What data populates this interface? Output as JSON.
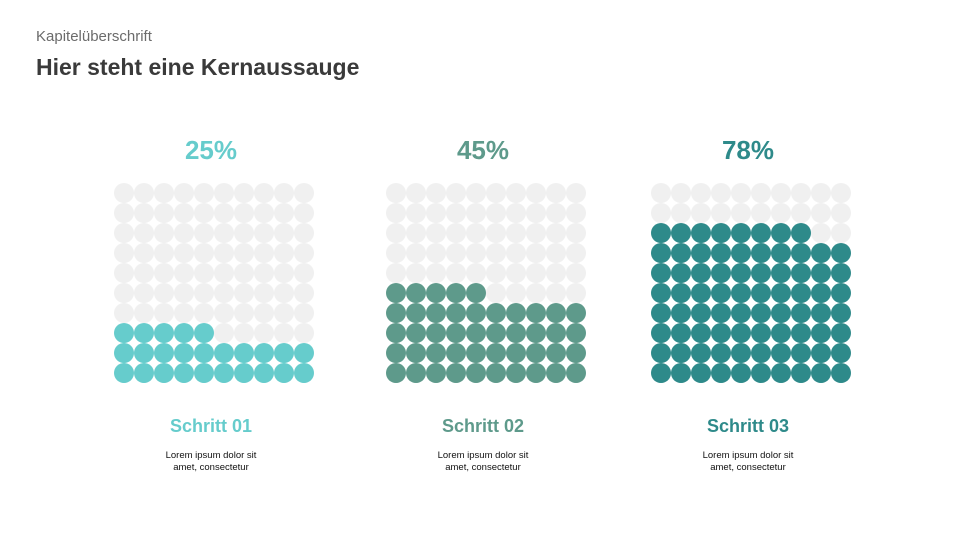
{
  "header": {
    "kapitel": "Kapitelüberschrift",
    "headline": "Hier steht eine Kernaussauge"
  },
  "chart_data": [
    {
      "type": "waffle",
      "value": 25,
      "label": "25%",
      "grid": [
        10,
        10
      ],
      "fill_color": "#66cccc",
      "empty_color": "#f0f0f0",
      "step": "Schritt 01",
      "text": "Lorem ipsum dolor sit\namet, consectetur"
    },
    {
      "type": "waffle",
      "value": 45,
      "label": "45%",
      "grid": [
        10,
        10
      ],
      "fill_color": "#5e9a8b",
      "empty_color": "#f0f0f0",
      "step": "Schritt 02",
      "text": "Lorem ipsum dolor sit\namet, consectetur"
    },
    {
      "type": "waffle",
      "value": 78,
      "label": "78%",
      "grid": [
        10,
        10
      ],
      "fill_color": "#2e8a8a",
      "empty_color": "#f0f0f0",
      "step": "Schritt 03",
      "text": "Lorem ipsum dolor sit\namet, consectetur"
    }
  ]
}
